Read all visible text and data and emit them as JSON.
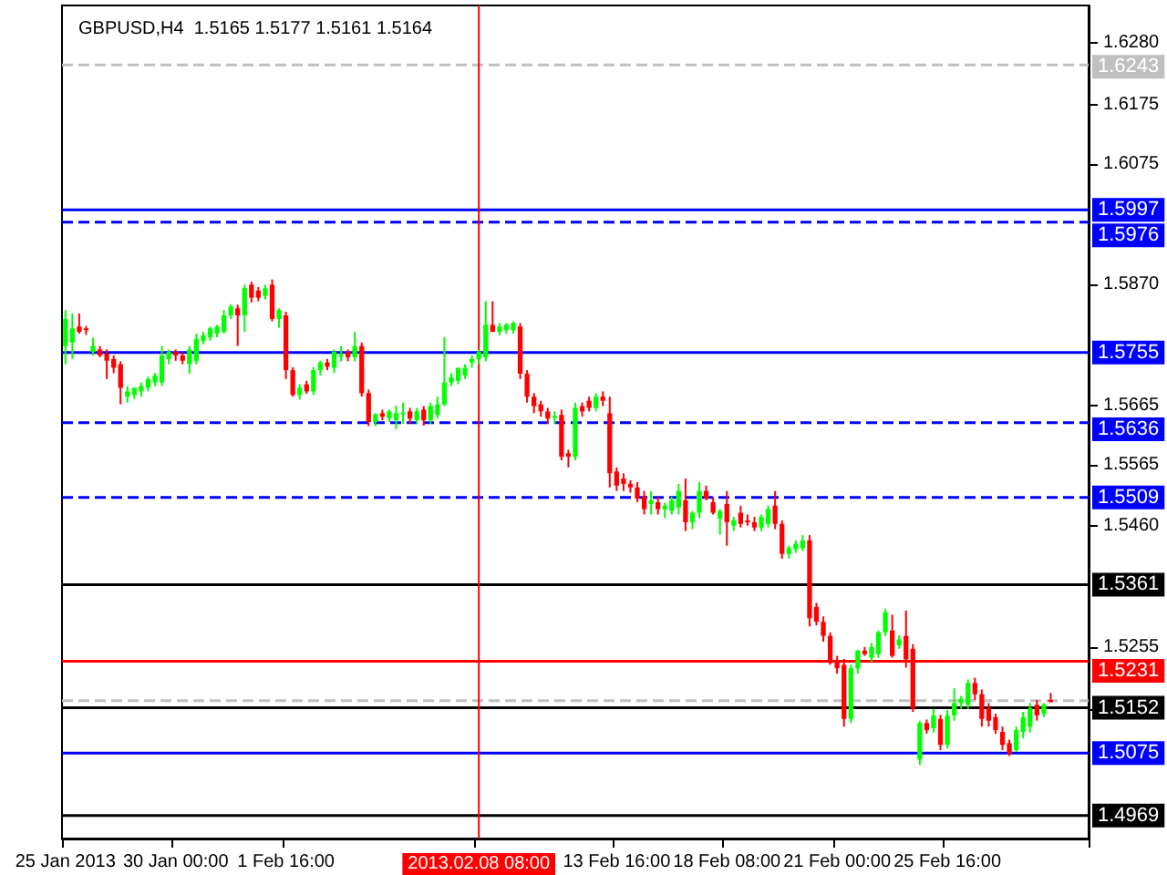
{
  "chart_data": {
    "type": "candlestick",
    "title": "GBPUSD,H4  1.5165 1.5177 1.5161 1.5164",
    "categories": [
      "25 Jan 2013",
      null,
      null,
      null,
      null,
      null,
      null,
      null,
      null,
      null,
      null,
      null,
      null,
      null,
      null,
      null,
      "30 Jan 00:00",
      null,
      null,
      null,
      null,
      null,
      null,
      null,
      null,
      null,
      null,
      null,
      null,
      null,
      null,
      null,
      "1 Feb 16:00",
      null,
      null,
      null,
      null,
      null,
      null,
      null,
      null,
      null,
      null,
      null,
      null,
      null,
      null,
      null,
      null,
      null,
      null,
      null,
      null,
      null,
      null,
      null,
      null,
      null,
      null,
      null,
      "2013.02.08 08:00",
      null,
      null,
      null,
      null,
      null,
      null,
      null,
      null,
      null,
      null,
      null,
      null,
      null,
      null,
      null,
      null,
      null,
      null,
      null,
      "13 Feb 16:00",
      null,
      null,
      null,
      null,
      null,
      null,
      null,
      null,
      null,
      null,
      null,
      null,
      null,
      null,
      null,
      "18 Feb 08:00",
      null,
      null,
      null,
      null,
      null,
      null,
      null,
      null,
      null,
      null,
      null,
      null,
      null,
      null,
      null,
      "21 Feb 00:00",
      null,
      null,
      null,
      null,
      null,
      null,
      null,
      null,
      null,
      null,
      null,
      null,
      null,
      null,
      null,
      "25 Feb 16:00",
      null,
      null,
      null,
      null,
      null,
      null,
      null,
      null,
      null,
      null,
      null,
      null,
      null,
      null,
      null,
      null,
      null,
      null,
      null,
      null
    ],
    "ohlc": [
      [
        1.5766,
        1.5827,
        1.5735,
        1.5812
      ],
      [
        1.5772,
        1.5821,
        1.5744,
        1.5796
      ],
      [
        1.5799,
        1.5821,
        1.5787,
        1.579
      ],
      [
        1.5796,
        1.58,
        1.5785,
        1.5795
      ],
      [
        1.5756,
        1.578,
        1.575,
        1.5766
      ],
      [
        1.576,
        1.5766,
        1.5747,
        1.575
      ],
      [
        1.5753,
        1.576,
        1.571,
        1.5741
      ],
      [
        1.5744,
        1.575,
        1.572,
        1.5729
      ],
      [
        1.5735,
        1.574,
        1.5667,
        1.5695
      ],
      [
        1.568,
        1.5698,
        1.567,
        1.5689
      ],
      [
        1.5683,
        1.5695,
        1.5676,
        1.5695
      ],
      [
        1.5689,
        1.5704,
        1.568,
        1.5698
      ],
      [
        1.5695,
        1.5714,
        1.5689,
        1.571
      ],
      [
        1.5704,
        1.572,
        1.5698,
        1.5716
      ],
      [
        1.5704,
        1.5766,
        1.5698,
        1.575
      ],
      [
        1.5744,
        1.576,
        1.5735,
        1.5756
      ],
      [
        1.5756,
        1.576,
        1.5741,
        1.575
      ],
      [
        1.575,
        1.5756,
        1.5735,
        1.5741
      ],
      [
        1.5735,
        1.5766,
        1.5719,
        1.576
      ],
      [
        1.5741,
        1.5787,
        1.5735,
        1.5778
      ],
      [
        1.5775,
        1.579,
        1.5769,
        1.5784
      ],
      [
        1.5781,
        1.5799,
        1.5775,
        1.5796
      ],
      [
        1.5787,
        1.5802,
        1.5781,
        1.5799
      ],
      [
        1.579,
        1.5827,
        1.5787,
        1.5818
      ],
      [
        1.5818,
        1.5837,
        1.5812,
        1.5833
      ],
      [
        1.583,
        1.5836,
        1.5766,
        1.5818
      ],
      [
        1.5818,
        1.587,
        1.579,
        1.5864
      ],
      [
        1.587,
        1.5875,
        1.584,
        1.5848
      ],
      [
        1.586,
        1.5866,
        1.5842,
        1.5848
      ],
      [
        1.5851,
        1.587,
        1.5845,
        1.5864
      ],
      [
        1.587,
        1.5879,
        1.5808,
        1.5812
      ],
      [
        1.5812,
        1.583,
        1.5797,
        1.5827
      ],
      [
        1.5818,
        1.5824,
        1.571,
        1.5725
      ],
      [
        1.5725,
        1.573,
        1.568,
        1.5683
      ],
      [
        1.5683,
        1.5701,
        1.5675,
        1.5695
      ],
      [
        1.5701,
        1.5707,
        1.5685,
        1.5689
      ],
      [
        1.5689,
        1.573,
        1.5683,
        1.5725
      ],
      [
        1.5725,
        1.5741,
        1.5716,
        1.5738
      ],
      [
        1.5738,
        1.5744,
        1.5725,
        1.5731
      ],
      [
        1.5729,
        1.576,
        1.572,
        1.5756
      ],
      [
        1.575,
        1.5766,
        1.574,
        1.5751
      ],
      [
        1.5756,
        1.576,
        1.574,
        1.5747
      ],
      [
        1.5747,
        1.579,
        1.574,
        1.5766
      ],
      [
        1.5766,
        1.5772,
        1.568,
        1.5686
      ],
      [
        1.5686,
        1.5692,
        1.563,
        1.5637
      ],
      [
        1.5637,
        1.5652,
        1.563,
        1.565
      ],
      [
        1.5652,
        1.5658,
        1.564,
        1.5646
      ],
      [
        1.5643,
        1.5658,
        1.5637,
        1.5655
      ],
      [
        1.564,
        1.5665,
        1.5625,
        1.5652
      ],
      [
        1.5652,
        1.567,
        1.5634,
        1.5653
      ],
      [
        1.5655,
        1.5661,
        1.5634,
        1.5643
      ],
      [
        1.564,
        1.5661,
        1.5634,
        1.5655
      ],
      [
        1.5658,
        1.5664,
        1.5631,
        1.564
      ],
      [
        1.564,
        1.567,
        1.5634,
        1.5664
      ],
      [
        1.5649,
        1.568,
        1.5643,
        1.5667
      ],
      [
        1.5667,
        1.5781,
        1.5664,
        1.5704
      ],
      [
        1.5704,
        1.572,
        1.5698,
        1.5713
      ],
      [
        1.5707,
        1.5729,
        1.5701,
        1.5729
      ],
      [
        1.5716,
        1.5735,
        1.571,
        1.5729
      ],
      [
        1.5738,
        1.575,
        1.5729,
        1.5744
      ],
      [
        1.5744,
        1.576,
        1.5735,
        1.5756
      ],
      [
        1.5747,
        1.5842,
        1.574,
        1.5802
      ],
      [
        1.5802,
        1.5842,
        1.579,
        1.579
      ],
      [
        1.579,
        1.5805,
        1.5784,
        1.5799
      ],
      [
        1.5793,
        1.5805,
        1.5787,
        1.5802
      ],
      [
        1.5793,
        1.5808,
        1.5787,
        1.5805
      ],
      [
        1.5799,
        1.5805,
        1.571,
        1.5719
      ],
      [
        1.5719,
        1.5725,
        1.567,
        1.568
      ],
      [
        1.568,
        1.5686,
        1.5652,
        1.5664
      ],
      [
        1.5667,
        1.5673,
        1.5646,
        1.5655
      ],
      [
        1.5655,
        1.5661,
        1.5634,
        1.5643
      ],
      [
        1.5646,
        1.5655,
        1.5634,
        1.5647
      ],
      [
        1.5649,
        1.5658,
        1.5572,
        1.5578
      ],
      [
        1.5584,
        1.559,
        1.556,
        1.5578
      ],
      [
        1.5578,
        1.567,
        1.5572,
        1.5661
      ],
      [
        1.5664,
        1.567,
        1.5646,
        1.5655
      ],
      [
        1.5673,
        1.568,
        1.5655,
        1.5661
      ],
      [
        1.5661,
        1.5686,
        1.5655,
        1.568
      ],
      [
        1.568,
        1.5689,
        1.5664,
        1.5673
      ],
      [
        1.5652,
        1.568,
        1.5526,
        1.555
      ],
      [
        1.5553,
        1.556,
        1.552,
        1.5529
      ],
      [
        1.5541,
        1.555,
        1.552,
        1.5532
      ],
      [
        1.5532,
        1.5538,
        1.5517,
        1.5526
      ],
      [
        1.5526,
        1.5535,
        1.5501,
        1.5507
      ],
      [
        1.551,
        1.552,
        1.548,
        1.5489
      ],
      [
        1.5498,
        1.552,
        1.548,
        1.5504
      ],
      [
        1.5501,
        1.551,
        1.548,
        1.5489
      ],
      [
        1.5489,
        1.55,
        1.5474,
        1.5495
      ],
      [
        1.5486,
        1.551,
        1.548,
        1.5504
      ],
      [
        1.5492,
        1.5532,
        1.548,
        1.552
      ],
      [
        1.5504,
        1.5541,
        1.5452,
        1.5467
      ],
      [
        1.5467,
        1.5486,
        1.5455,
        1.5483
      ],
      [
        1.5483,
        1.5535,
        1.5474,
        1.552
      ],
      [
        1.552,
        1.5529,
        1.5504,
        1.5507
      ],
      [
        1.5501,
        1.551,
        1.548,
        1.5483
      ],
      [
        1.5473,
        1.5489,
        1.5446,
        1.5486
      ],
      [
        1.5498,
        1.552,
        1.5427,
        1.5467
      ],
      [
        1.5461,
        1.5476,
        1.5452,
        1.547
      ],
      [
        1.5483,
        1.5495,
        1.5458,
        1.5464
      ],
      [
        1.547,
        1.548,
        1.5461,
        1.5467
      ],
      [
        1.5467,
        1.5476,
        1.5452,
        1.5458
      ],
      [
        1.5458,
        1.548,
        1.5452,
        1.5476
      ],
      [
        1.5464,
        1.5495,
        1.5458,
        1.5489
      ],
      [
        1.5495,
        1.552,
        1.5455,
        1.5464
      ],
      [
        1.5464,
        1.547,
        1.5405,
        1.5413
      ],
      [
        1.5413,
        1.5427,
        1.5405,
        1.5423
      ],
      [
        1.5421,
        1.5436,
        1.5415,
        1.543
      ],
      [
        1.5423,
        1.5445,
        1.5418,
        1.5436
      ],
      [
        1.5436,
        1.5445,
        1.529,
        1.5304
      ],
      [
        1.5323,
        1.533,
        1.5292,
        1.5298
      ],
      [
        1.5298,
        1.5307,
        1.5264,
        1.5274
      ],
      [
        1.5274,
        1.528,
        1.5225,
        1.5228
      ],
      [
        1.5231,
        1.524,
        1.521,
        1.5219
      ],
      [
        1.5225,
        1.5235,
        1.512,
        1.5133
      ],
      [
        1.5133,
        1.5225,
        1.5126,
        1.5219
      ],
      [
        1.5219,
        1.525,
        1.521,
        1.5249
      ],
      [
        1.5249,
        1.5255,
        1.524,
        1.5243
      ],
      [
        1.5237,
        1.5262,
        1.523,
        1.5255
      ],
      [
        1.5243,
        1.5283,
        1.5237,
        1.528
      ],
      [
        1.528,
        1.532,
        1.5274,
        1.5314
      ],
      [
        1.5283,
        1.531,
        1.5237,
        1.524
      ],
      [
        1.5258,
        1.5275,
        1.5252,
        1.5268
      ],
      [
        1.5274,
        1.5317,
        1.522,
        1.5234
      ],
      [
        1.5252,
        1.526,
        1.5145,
        1.5151
      ],
      [
        1.5064,
        1.513,
        1.5055,
        1.5126
      ],
      [
        1.5126,
        1.5132,
        1.5108,
        1.5114
      ],
      [
        1.5117,
        1.515,
        1.511,
        1.5139
      ],
      [
        1.5133,
        1.514,
        1.508,
        1.5089
      ],
      [
        1.5089,
        1.5148,
        1.5083,
        1.5139
      ],
      [
        1.5139,
        1.5185,
        1.513,
        1.516
      ],
      [
        1.516,
        1.5172,
        1.515,
        1.5167
      ],
      [
        1.5157,
        1.52,
        1.515,
        1.5194
      ],
      [
        1.5194,
        1.5203,
        1.5165,
        1.5175
      ],
      [
        1.5175,
        1.5183,
        1.512,
        1.5133
      ],
      [
        1.5151,
        1.516,
        1.512,
        1.513
      ],
      [
        1.5136,
        1.5142,
        1.5108,
        1.5114
      ],
      [
        1.5111,
        1.512,
        1.508,
        1.5089
      ],
      [
        1.5092,
        1.5098,
        1.507,
        1.5074
      ],
      [
        1.508,
        1.512,
        1.5077,
        1.5114
      ],
      [
        1.5111,
        1.5145,
        1.51,
        1.5136
      ],
      [
        1.512,
        1.516,
        1.511,
        1.5151
      ],
      [
        1.5157,
        1.5165,
        1.513,
        1.5139
      ],
      [
        1.5142,
        1.516,
        1.5136,
        1.5157
      ],
      [
        1.5165,
        1.5177,
        1.5161,
        1.5164
      ],
      null,
      null,
      null,
      null,
      null
    ],
    "ylim": [
      1.493,
      1.6344
    ],
    "yticks": [
      {
        "value": 1.628,
        "label": "1.6280"
      },
      {
        "value": 1.6175,
        "label": "1.6175"
      },
      {
        "value": 1.6075,
        "label": "1.6075"
      },
      {
        "value": 1.587,
        "label": "1.5870"
      },
      {
        "value": 1.5665,
        "label": "1.5665"
      },
      {
        "value": 1.5565,
        "label": "1.5565"
      },
      {
        "value": 1.546,
        "label": "1.5460"
      },
      {
        "value": 1.5255,
        "label": "1.5255"
      },
      {
        "value": 1.515,
        "label": null
      }
    ],
    "ref_lines": [
      {
        "axis": "y",
        "value": 1.6243,
        "label": "1.6243",
        "color": "#c0c0c0",
        "line_style": "dashed"
      },
      {
        "axis": "y",
        "value": 1.5997,
        "label": "1.5997",
        "color": "#0000ff",
        "line_style": "solid"
      },
      {
        "axis": "y",
        "value": 1.5976,
        "label": "1.5976",
        "color": "#0000ff",
        "line_style": "dashed"
      },
      {
        "axis": "y",
        "value": 1.5755,
        "label": "1.5755",
        "color": "#0000ff",
        "line_style": "solid"
      },
      {
        "axis": "y",
        "value": 1.5636,
        "label": "1.5636",
        "color": "#0000ff",
        "line_style": "dashed"
      },
      {
        "axis": "y",
        "value": 1.5509,
        "label": "1.5509",
        "color": "#0000ff",
        "line_style": "dashed"
      },
      {
        "axis": "y",
        "value": 1.5361,
        "label": "1.5361",
        "color": "#000000",
        "line_style": "solid"
      },
      {
        "axis": "y",
        "value": 1.5231,
        "label": "1.5231",
        "color": "#ff0000",
        "line_style": "solid"
      },
      {
        "axis": "y",
        "value": 1.5164,
        "label": null,
        "color": "#c0c0c0",
        "line_style": "dashed"
      },
      {
        "axis": "y",
        "value": 1.5152,
        "label": "1.5152",
        "color": "#000000",
        "line_style": "solid"
      },
      {
        "axis": "y",
        "value": 1.5075,
        "label": "1.5075",
        "color": "#0000ff",
        "line_style": "solid"
      },
      {
        "axis": "y",
        "value": 1.4969,
        "label": "1.4969",
        "color": "#000000",
        "line_style": "solid"
      },
      {
        "axis": "x",
        "value": "2013.02.08 08:00",
        "color": "#ff0000",
        "line_style": "solid"
      }
    ],
    "grid": false
  }
}
